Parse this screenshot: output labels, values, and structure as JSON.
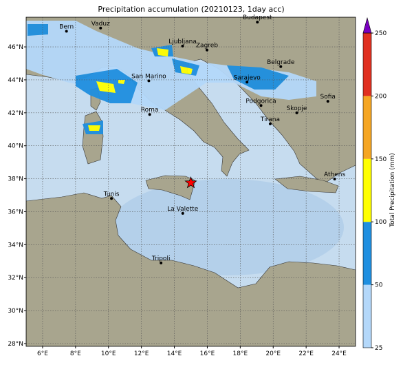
{
  "title": "Precipitation accumulation (20210123, 1day acc)",
  "lon_range": [
    5,
    25
  ],
  "lat_range": [
    27.83,
    47.8
  ],
  "lon_ticks": [
    {
      "value": 6,
      "label": "6°E"
    },
    {
      "value": 8,
      "label": "8°E"
    },
    {
      "value": 10,
      "label": "10°E"
    },
    {
      "value": 12,
      "label": "12°E"
    },
    {
      "value": 14,
      "label": "14°E"
    },
    {
      "value": 16,
      "label": "16°E"
    },
    {
      "value": 18,
      "label": "18°E"
    },
    {
      "value": 20,
      "label": "20°E"
    },
    {
      "value": 22,
      "label": "22°E"
    },
    {
      "value": 24,
      "label": "24°E"
    }
  ],
  "lat_ticks": [
    {
      "value": 28,
      "label": "28°N"
    },
    {
      "value": 30,
      "label": "30°N"
    },
    {
      "value": 32,
      "label": "32°N"
    },
    {
      "value": 34,
      "label": "34°N"
    },
    {
      "value": 36,
      "label": "36°N"
    },
    {
      "value": 38,
      "label": "38°N"
    },
    {
      "value": 40,
      "label": "40°N"
    },
    {
      "value": 42,
      "label": "42°N"
    },
    {
      "value": 44,
      "label": "44°N"
    },
    {
      "value": 46,
      "label": "46°N"
    }
  ],
  "cities": [
    {
      "name": "Bern",
      "lon": 7.45,
      "lat": 46.95
    },
    {
      "name": "Vaduz",
      "lon": 9.52,
      "lat": 47.14
    },
    {
      "name": "Budapest",
      "lon": 19.04,
      "lat": 47.5
    },
    {
      "name": "Ljubljana",
      "lon": 14.5,
      "lat": 46.05
    },
    {
      "name": "Zagreb",
      "lon": 15.98,
      "lat": 45.81
    },
    {
      "name": "Belgrade",
      "lon": 20.46,
      "lat": 44.8
    },
    {
      "name": "San Marino",
      "lon": 12.45,
      "lat": 43.94
    },
    {
      "name": "Sarajevo",
      "lon": 18.41,
      "lat": 43.86
    },
    {
      "name": "Sofia",
      "lon": 23.32,
      "lat": 42.7
    },
    {
      "name": "Podgorica",
      "lon": 19.26,
      "lat": 42.44
    },
    {
      "name": "Skopje",
      "lon": 21.43,
      "lat": 42.0
    },
    {
      "name": "Roma",
      "lon": 12.5,
      "lat": 41.9
    },
    {
      "name": "Tirana",
      "lon": 19.82,
      "lat": 41.33
    },
    {
      "name": "Athens",
      "lon": 23.73,
      "lat": 37.98
    },
    {
      "name": "Tunis",
      "lon": 10.18,
      "lat": 36.8
    },
    {
      "name": "La Valette",
      "lon": 14.51,
      "lat": 35.9
    },
    {
      "name": "Tripoli",
      "lon": 13.19,
      "lat": 32.89
    }
  ],
  "marker": {
    "lon": 15.0,
    "lat": 37.75,
    "color": "#ff0000"
  },
  "colorbar": {
    "label": "Total Precipitation (mm)",
    "ticks": [
      25,
      50,
      100,
      150,
      200,
      250
    ],
    "colors": [
      "#b4d8fa",
      "#1f8fe0",
      "#ffff00",
      "#f5a623",
      "#e03020"
    ],
    "extend_color": "#7a00c0"
  }
}
